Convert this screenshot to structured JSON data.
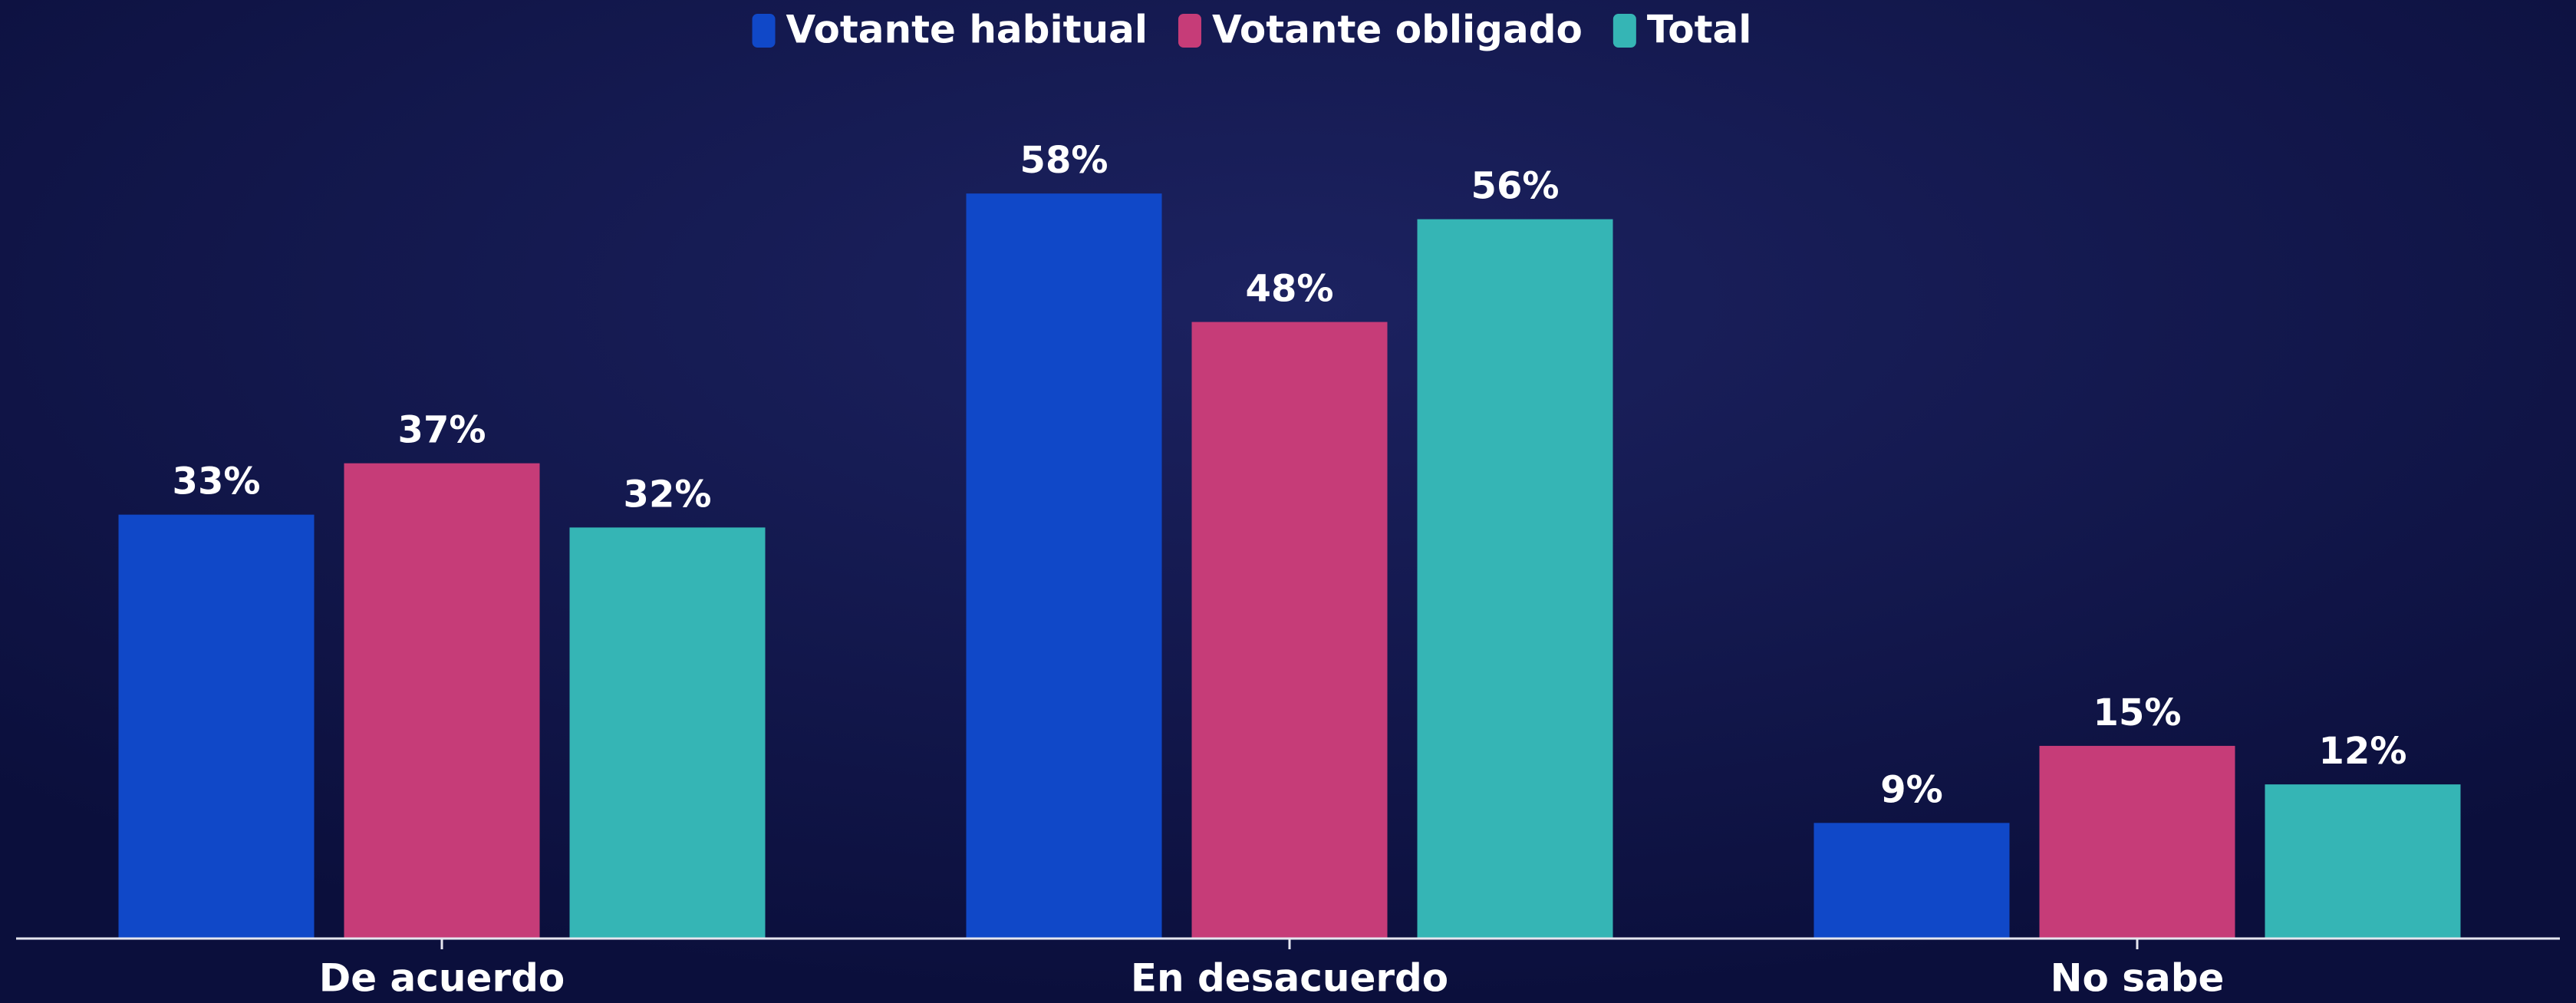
{
  "chart_data": {
    "type": "bar",
    "categories": [
      "De acuerdo",
      "En desacuerdo",
      "No sabe"
    ],
    "series": [
      {
        "name": "Votante habitual",
        "color": "#1048c8",
        "values": [
          33,
          58,
          9
        ],
        "value_labels": [
          "33%",
          "58%",
          "9%"
        ]
      },
      {
        "name": "Votante obligado",
        "color": "#c63c78",
        "values": [
          37,
          48,
          15
        ],
        "value_labels": [
          "37%",
          "48%",
          "15%"
        ]
      },
      {
        "name": "Total",
        "color": "#35b5b5",
        "values": [
          32,
          56,
          12
        ],
        "value_labels": [
          "32%",
          "56%",
          "12%"
        ]
      }
    ],
    "ylim": [
      0,
      65
    ],
    "legend": "top"
  }
}
